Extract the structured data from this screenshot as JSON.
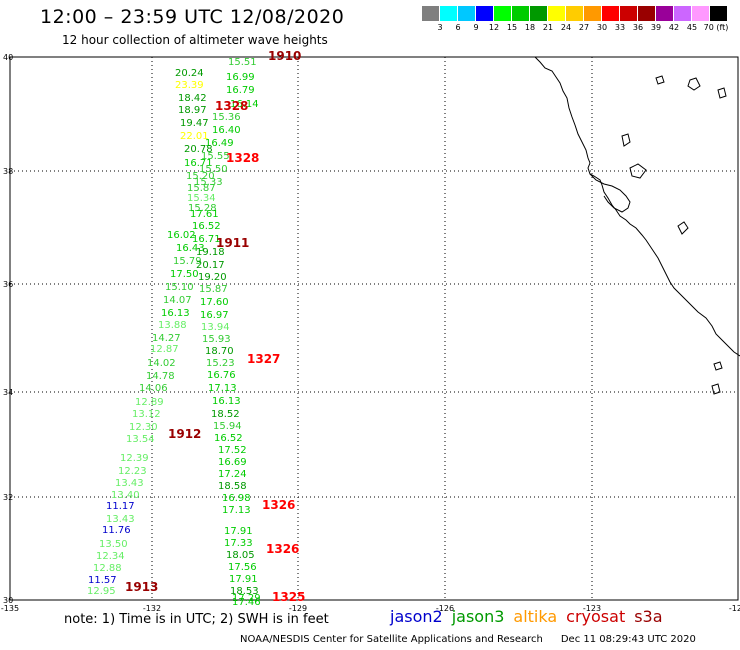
{
  "header": {
    "title": "12:00 – 23:59 UTC 12/08/2020",
    "subtitle": "12 hour collection of altimeter wave heights"
  },
  "colorbar": {
    "colors": [
      "#7f7f7f",
      "#00ffff",
      "#00c8ff",
      "#0000ff",
      "#00ff00",
      "#00cc00",
      "#009900",
      "#ffff00",
      "#ffcc00",
      "#ff9900",
      "#ff0000",
      "#cc0000",
      "#990000",
      "#990099",
      "#cc66ff",
      "#ff99ff",
      "#000000"
    ],
    "labels": [
      "3",
      "6",
      "9",
      "12",
      "15",
      "18",
      "21",
      "24",
      "27",
      "30",
      "33",
      "36",
      "39",
      "42",
      "45",
      "70 (ft)"
    ]
  },
  "axes": {
    "lon_labels": [
      "-135",
      "-132",
      "-129",
      "-126",
      "-123",
      "-120"
    ],
    "lat_labels": [
      "40",
      "38",
      "36",
      "34",
      "32",
      "30"
    ]
  },
  "legend": {
    "note": "note: 1) Time is in UTC; 2) SWH is in feet",
    "satellites": [
      {
        "name": "jason2",
        "color": "#0000cc"
      },
      {
        "name": "jason3",
        "color": "#009900"
      },
      {
        "name": "altika",
        "color": "#ff9900"
      },
      {
        "name": "cryosat",
        "color": "#cc0000"
      },
      {
        "name": "s3a",
        "color": "#990000"
      }
    ]
  },
  "credit": {
    "text": "NOAA/NESDIS Center for Satellite Applications and Research",
    "timestamp": "Dec 11 08:29:43 UTC 2020"
  },
  "time_labels": [
    {
      "text": "1910",
      "color": "#990000"
    },
    {
      "text": "1328",
      "color": "#cc0000"
    },
    {
      "text": "1328",
      "color": "#ff0000"
    },
    {
      "text": "1911",
      "color": "#990000"
    },
    {
      "text": "1327",
      "color": "#ff0000"
    },
    {
      "text": "1912",
      "color": "#990000"
    },
    {
      "text": "1326",
      "color": "#ff0000"
    },
    {
      "text": "1326",
      "color": "#ff0000"
    },
    {
      "text": "1913",
      "color": "#990000"
    },
    {
      "text": "1325",
      "color": "#ff0000"
    }
  ],
  "observations": [
    {
      "text": "15.51",
      "color": "#33cc33"
    },
    {
      "text": "20.24",
      "color": "#009900"
    },
    {
      "text": "16.99",
      "color": "#00cc00"
    },
    {
      "text": "23.39",
      "color": "#ffff00"
    },
    {
      "text": "16.79",
      "color": "#00cc00"
    },
    {
      "text": "18.42",
      "color": "#009900"
    },
    {
      "text": "16.14",
      "color": "#00cc00"
    },
    {
      "text": "18.97",
      "color": "#009900"
    },
    {
      "text": "15.36",
      "color": "#33cc33"
    },
    {
      "text": "19.47",
      "color": "#009900"
    },
    {
      "text": "16.40",
      "color": "#00cc00"
    },
    {
      "text": "22.01",
      "color": "#ffff00"
    },
    {
      "text": "16.49",
      "color": "#00cc00"
    },
    {
      "text": "20.78",
      "color": "#009900"
    },
    {
      "text": "15.55",
      "color": "#33cc33"
    },
    {
      "text": "16.71",
      "color": "#00cc00"
    },
    {
      "text": "15.50",
      "color": "#33cc33"
    },
    {
      "text": "15.20",
      "color": "#33cc33"
    },
    {
      "text": "15.33",
      "color": "#33cc33"
    },
    {
      "text": "15.87",
      "color": "#33cc33"
    },
    {
      "text": "15.34",
      "color": "#66ee66"
    },
    {
      "text": "15.28",
      "color": "#33cc33"
    },
    {
      "text": "17.61",
      "color": "#00cc00"
    },
    {
      "text": "16.52",
      "color": "#00cc00"
    },
    {
      "text": "16.02",
      "color": "#00cc00"
    },
    {
      "text": "16.71",
      "color": "#00cc00"
    },
    {
      "text": "16.43",
      "color": "#00cc00"
    },
    {
      "text": "19.18",
      "color": "#009900"
    },
    {
      "text": "15.79",
      "color": "#33cc33"
    },
    {
      "text": "20.17",
      "color": "#009900"
    },
    {
      "text": "17.50",
      "color": "#00cc00"
    },
    {
      "text": "19.20",
      "color": "#009900"
    },
    {
      "text": "15.10",
      "color": "#33cc33"
    },
    {
      "text": "15.87",
      "color": "#33cc33"
    },
    {
      "text": "14.07",
      "color": "#33cc33"
    },
    {
      "text": "17.60",
      "color": "#00cc00"
    },
    {
      "text": "16.13",
      "color": "#00cc00"
    },
    {
      "text": "16.97",
      "color": "#00cc00"
    },
    {
      "text": "13.88",
      "color": "#66ee66"
    },
    {
      "text": "13.94",
      "color": "#66ee66"
    },
    {
      "text": "14.27",
      "color": "#33cc33"
    },
    {
      "text": "15.93",
      "color": "#33cc33"
    },
    {
      "text": "12.87",
      "color": "#66ee66"
    },
    {
      "text": "18.70",
      "color": "#009900"
    },
    {
      "text": "14.02",
      "color": "#33cc33"
    },
    {
      "text": "15.23",
      "color": "#33cc33"
    },
    {
      "text": "14.78",
      "color": "#33cc33"
    },
    {
      "text": "16.76",
      "color": "#00cc00"
    },
    {
      "text": "14.06",
      "color": "#33cc33"
    },
    {
      "text": "17.13",
      "color": "#00cc00"
    },
    {
      "text": "12.89",
      "color": "#66ee66"
    },
    {
      "text": "16.13",
      "color": "#00cc00"
    },
    {
      "text": "13.12",
      "color": "#66ee66"
    },
    {
      "text": "18.52",
      "color": "#009900"
    },
    {
      "text": "12.30",
      "color": "#66ee66"
    },
    {
      "text": "15.94",
      "color": "#33cc33"
    },
    {
      "text": "13.54",
      "color": "#66ee66"
    },
    {
      "text": "16.52",
      "color": "#00cc00"
    },
    {
      "text": "17.52",
      "color": "#00cc00"
    },
    {
      "text": "12.39",
      "color": "#66ee66"
    },
    {
      "text": "16.69",
      "color": "#00cc00"
    },
    {
      "text": "12.23",
      "color": "#66ee66"
    },
    {
      "text": "17.24",
      "color": "#00cc00"
    },
    {
      "text": "13.43",
      "color": "#66ee66"
    },
    {
      "text": "18.58",
      "color": "#009900"
    },
    {
      "text": "13.40",
      "color": "#66ee66"
    },
    {
      "text": "16.98",
      "color": "#00cc00"
    },
    {
      "text": "11.17",
      "color": "#0000cc"
    },
    {
      "text": "17.13",
      "color": "#00cc00"
    },
    {
      "text": "13.43",
      "color": "#66ee66"
    },
    {
      "text": "17.91",
      "color": "#00cc00"
    },
    {
      "text": "11.76",
      "color": "#0000cc"
    },
    {
      "text": "17.33",
      "color": "#00cc00"
    },
    {
      "text": "13.50",
      "color": "#66ee66"
    },
    {
      "text": "18.05",
      "color": "#009900"
    },
    {
      "text": "12.34",
      "color": "#66ee66"
    },
    {
      "text": "17.56",
      "color": "#00cc00"
    },
    {
      "text": "12.88",
      "color": "#66ee66"
    },
    {
      "text": "17.91",
      "color": "#00cc00"
    },
    {
      "text": "11.57",
      "color": "#0000cc"
    },
    {
      "text": "18.53",
      "color": "#009900"
    },
    {
      "text": "12.95",
      "color": "#66ee66"
    },
    {
      "text": "17.46",
      "color": "#00cc00"
    },
    {
      "text": "17.29",
      "color": "#00cc00"
    }
  ]
}
